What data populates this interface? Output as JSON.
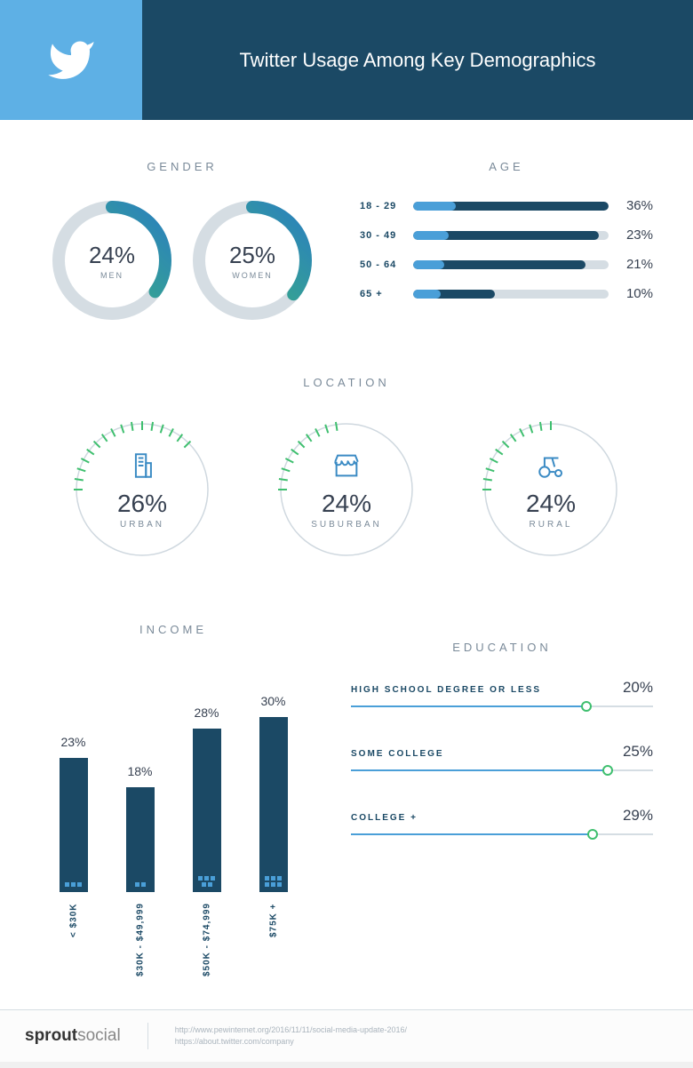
{
  "colors": {
    "header_icon_bg": "#5eb0e5",
    "header_title_bg": "#1b4965",
    "header_title_color": "#ffffff",
    "section_title_color": "#7a8a99",
    "text_dark": "#374151",
    "text_navy": "#1b4965",
    "track_grey": "#d5dde3",
    "accent_blue": "#4a9fd8",
    "accent_green": "#3fbf6f",
    "donut_grad_start": "#3fbf6f",
    "donut_grad_end": "#2a7fbf",
    "page_bg": "#ffffff"
  },
  "header": {
    "title": "Twitter Usage Among Key Demographics",
    "title_fontsize": 22,
    "icon": "twitter-bird"
  },
  "gender": {
    "title": "GENDER",
    "type": "donut",
    "ring_track_color": "#d5dde3",
    "ring_stroke_width": 14,
    "items": [
      {
        "label": "MEN",
        "value": 24,
        "display": "24%",
        "arc_fraction_of_circle": 0.35
      },
      {
        "label": "WOMEN",
        "value": 25,
        "display": "25%",
        "arc_fraction_of_circle": 0.36
      }
    ]
  },
  "age": {
    "title": "AGE",
    "type": "bar_horizontal",
    "track_color": "#d5dde3",
    "fill_dark": "#1b4965",
    "fill_light": "#4a9fd8",
    "max_scale": 40,
    "rows": [
      {
        "label": "18 - 29",
        "value": 36,
        "display": "36%",
        "dark_fill_pct": 100,
        "light_fill_pct": 22
      },
      {
        "label": "30 - 49",
        "value": 23,
        "display": "23%",
        "dark_fill_pct": 95,
        "light_fill_pct": 18
      },
      {
        "label": "50 - 64",
        "value": 21,
        "display": "21%",
        "dark_fill_pct": 88,
        "light_fill_pct": 16
      },
      {
        "label": "65 +",
        "value": 10,
        "display": "10%",
        "dark_fill_pct": 42,
        "light_fill_pct": 14
      }
    ]
  },
  "location": {
    "title": "LOCATION",
    "type": "tick_ring",
    "ring_line_color": "#cfd8df",
    "tick_color": "#3fbf6f",
    "total_ticks": 40,
    "items": [
      {
        "label": "URBAN",
        "value": 26,
        "display": "26%",
        "icon": "building",
        "lit_ticks": 16
      },
      {
        "label": "SUBURBAN",
        "value": 24,
        "display": "24%",
        "icon": "store",
        "lit_ticks": 10
      },
      {
        "label": "RURAL",
        "value": 24,
        "display": "24%",
        "icon": "tractor",
        "lit_ticks": 11
      }
    ]
  },
  "income": {
    "title": "INCOME",
    "type": "bar_vertical",
    "bar_color": "#1b4965",
    "dot_color": "#4a9fd8",
    "max_scale": 32,
    "bars": [
      {
        "label": "< $30K",
        "value": 23,
        "display": "23%",
        "dots": 3
      },
      {
        "label": "$30K - $49,999",
        "value": 18,
        "display": "18%",
        "dots": 2
      },
      {
        "label": "$50K - $74,999",
        "value": 28,
        "display": "28%",
        "dots": 5
      },
      {
        "label": "$75K +",
        "value": 30,
        "display": "30%",
        "dots": 6
      }
    ]
  },
  "education": {
    "title": "EDUCATION",
    "type": "slider",
    "track_color": "#d5dde3",
    "fill_color": "#4a9fd8",
    "knob_border": "#3fbf6f",
    "rows": [
      {
        "label": "HIGH SCHOOL DEGREE OR LESS",
        "value": 20,
        "display": "20%",
        "knob_pos_pct": 78
      },
      {
        "label": "SOME COLLEGE",
        "value": 25,
        "display": "25%",
        "knob_pos_pct": 85
      },
      {
        "label": "COLLEGE +",
        "value": 29,
        "display": "29%",
        "knob_pos_pct": 80
      }
    ]
  },
  "footer": {
    "brand_bold": "sprout",
    "brand_light": "social",
    "sources": [
      "http://www.pewinternet.org/2016/11/11/social-media-update-2016/",
      "https://about.twitter.com/company"
    ]
  }
}
